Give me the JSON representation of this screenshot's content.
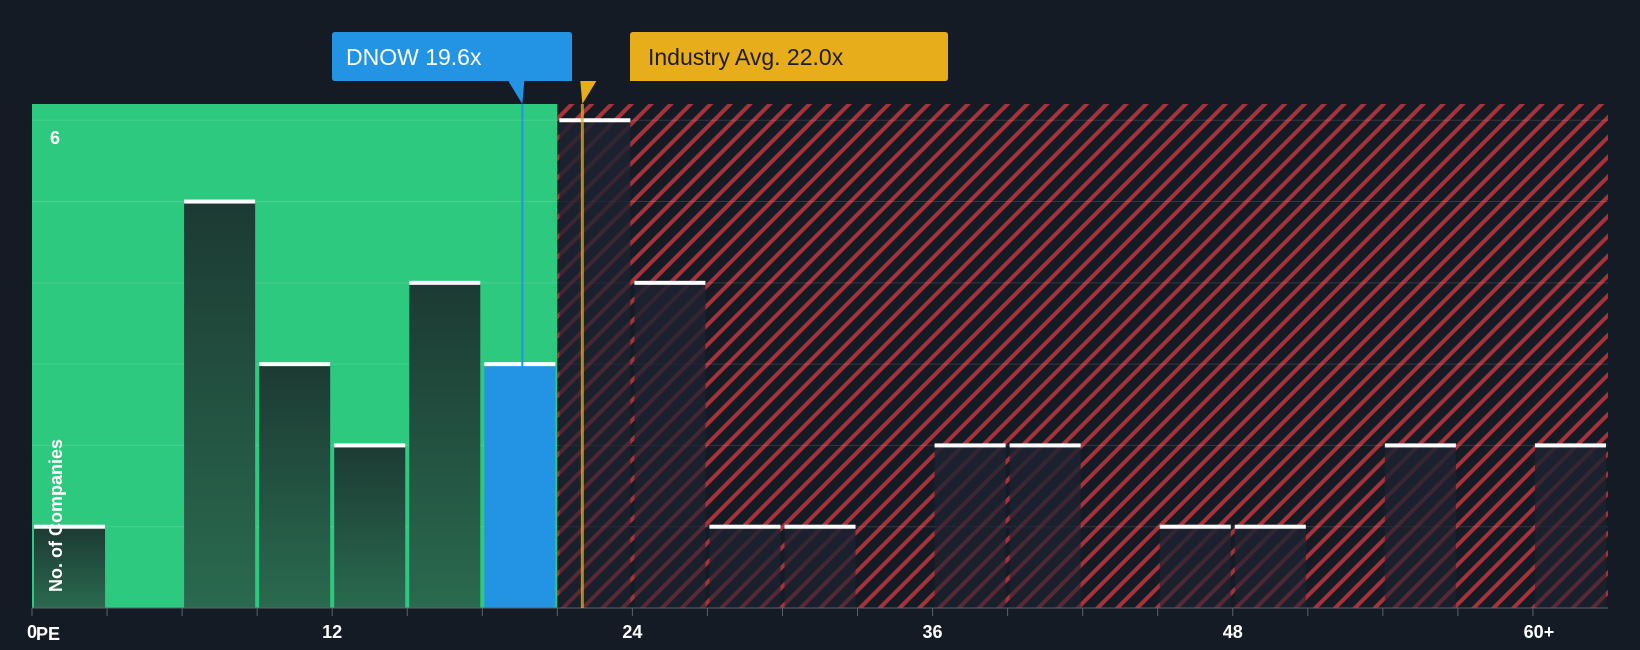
{
  "colors": {
    "background": "#151b24",
    "below_zone": "#2dc97e",
    "above_zone": "#a8323a",
    "bar_dark": "#1f3a32",
    "bar_highlight": "#2394e3",
    "industry_line": "#e8ad1a",
    "company_callout": "#2394e3",
    "industry_callout": "#e8ad1a"
  },
  "callouts": {
    "company": "DNOW 19.6x",
    "industry": "Industry Avg. 22.0x"
  },
  "chart_data": {
    "type": "bar",
    "title": "",
    "xlabel": "PE",
    "ylabel": "No. of Companies",
    "bin_width": 3,
    "xlim": [
      0,
      63
    ],
    "ylim": [
      0,
      6.2
    ],
    "x_ticks": [
      0,
      12,
      24,
      36,
      48,
      60
    ],
    "x_tick_labels": [
      "0",
      "12",
      "24",
      "36",
      "48",
      "60+"
    ],
    "y_ticks": [
      6
    ],
    "y_tick_labels": [
      "6"
    ],
    "company": {
      "name": "DNOW",
      "pe": 19.6
    },
    "industry_avg": 22.0,
    "bins": [
      {
        "start": 0,
        "end": 3,
        "value": 1
      },
      {
        "start": 6,
        "end": 9,
        "value": 5
      },
      {
        "start": 9,
        "end": 12,
        "value": 3
      },
      {
        "start": 12,
        "end": 15,
        "value": 2
      },
      {
        "start": 15,
        "end": 18,
        "value": 4
      },
      {
        "start": 18,
        "end": 21,
        "value": 3,
        "highlight": true
      },
      {
        "start": 21,
        "end": 24,
        "value": 6
      },
      {
        "start": 24,
        "end": 27,
        "value": 4
      },
      {
        "start": 27,
        "end": 30,
        "value": 1
      },
      {
        "start": 30,
        "end": 33,
        "value": 1
      },
      {
        "start": 36,
        "end": 39,
        "value": 2
      },
      {
        "start": 39,
        "end": 42,
        "value": 2
      },
      {
        "start": 45,
        "end": 48,
        "value": 1
      },
      {
        "start": 48,
        "end": 51,
        "value": 1
      },
      {
        "start": 54,
        "end": 57,
        "value": 2
      },
      {
        "start": 60,
        "end": 63,
        "value": 2
      }
    ]
  }
}
